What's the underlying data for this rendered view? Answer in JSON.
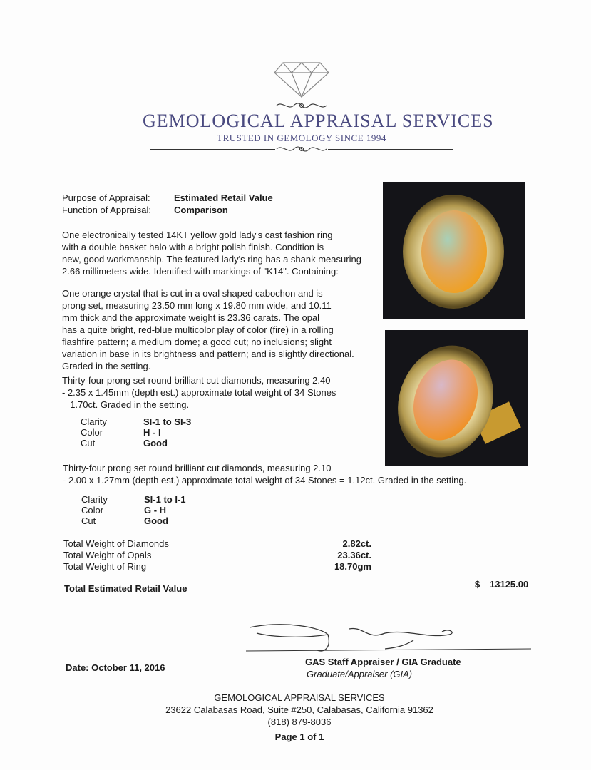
{
  "header": {
    "company": "GEMOLOGICAL APPRAISAL SERVICES",
    "tagline": "TRUSTED IN GEMOLOGY SINCE 1994",
    "logo_icon": "diamond-icon"
  },
  "purpose": {
    "label": "Purpose of Appraisal:",
    "value": "Estimated Retail Value"
  },
  "function": {
    "label": "Function of Appraisal:",
    "value": "Comparison"
  },
  "description": [
    "One electronically tested 14KT yellow gold lady's cast fashion ring",
    "with a double basket halo with a bright polish finish. Condition is",
    "new, good workmanship. The featured lady's ring has a shank measuring",
    "2.66 millimeters wide. Identified with markings of \"K14\".  Containing:"
  ],
  "opal": [
    "One orange crystal that is cut in a oval shaped cabochon and is",
    "prong set, measuring 23.50 mm long x 19.80 mm wide, and 10.11",
    "mm thick and the approximate weight is 23.36 carats. The opal",
    "has a quite bright, red-blue multicolor play of color (fire) in a rolling",
    "flashfire pattern; a medium dome; a good cut; no inclusions; slight",
    "variation in base in its brightness and pattern; and is slightly directional.",
    "Graded in the setting."
  ],
  "diamonds1": {
    "text": [
      "Thirty-four prong set round brilliant cut diamonds, measuring 2.40",
      "- 2.35 x 1.45mm (depth est.) approximate total weight of 34 Stones",
      "= 1.70ct. Graded in the setting."
    ],
    "grades": [
      {
        "k": "Clarity",
        "v": "SI-1 to SI-3"
      },
      {
        "k": "Color",
        "v": "H - I"
      },
      {
        "k": "Cut",
        "v": "Good"
      }
    ]
  },
  "diamonds2": {
    "text": [
      "Thirty-four prong set round brilliant cut diamonds, measuring 2.10",
      "- 2.00 x 1.27mm (depth est.) approximate total weight of 34 Stones = 1.12ct. Graded in the setting."
    ],
    "grades": [
      {
        "k": "Clarity",
        "v": "SI-1 to I-1"
      },
      {
        "k": "Color",
        "v": "G - H"
      },
      {
        "k": "Cut",
        "v": "Good"
      }
    ]
  },
  "totals": [
    {
      "k": "Total Weight of Diamonds",
      "v": "2.82ct."
    },
    {
      "k": "Total Weight of Opals",
      "v": "23.36ct."
    },
    {
      "k": "Total Weight of Ring",
      "v": "18.70gm"
    }
  ],
  "retail": {
    "label": "Total Estimated Retail Value",
    "currency": "$",
    "value": "13125.00"
  },
  "date": "Date: October 11, 2016",
  "signer": {
    "title": "GAS Staff Appraiser / GIA Graduate",
    "subtitle": "Graduate/Appraiser (GIA)"
  },
  "footer": {
    "company": "GEMOLOGICAL APPRAISAL SERVICES",
    "address": "23622 Calabasas Road, Suite #250, Calabasas, California 91362",
    "phone": "(818) 879-8036",
    "page": "Page 1 of 1"
  }
}
